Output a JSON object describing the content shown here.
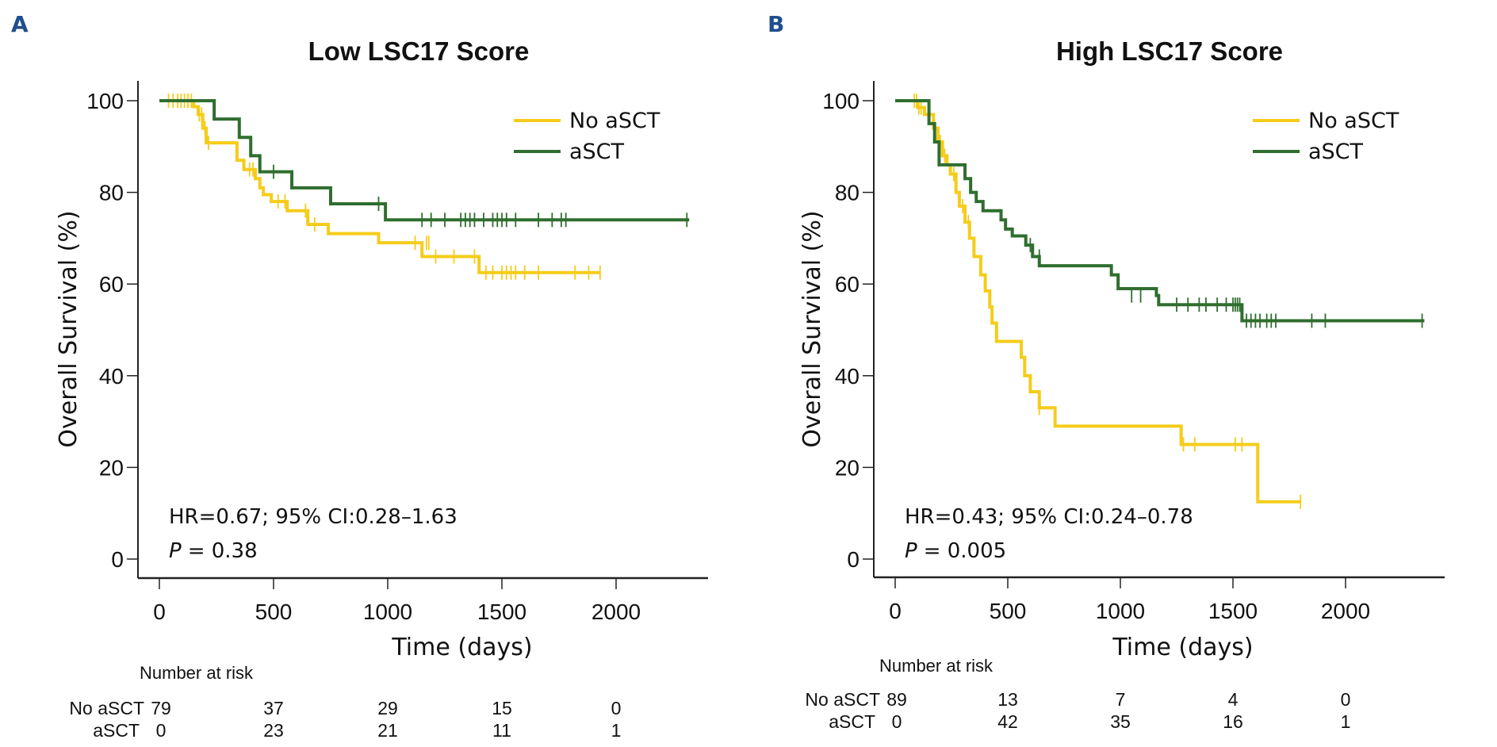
{
  "figure": {
    "colors": {
      "no_asct": "#f5cc1a",
      "asct": "#2f6e2f",
      "panel_letter": "#1f4e8c",
      "axis": "#222222"
    }
  },
  "chart_data": [
    {
      "panel": "A",
      "type": "line",
      "subtype": "kaplan-meier-step",
      "title": "Low LSC17 Score",
      "xlabel": "Time (days)",
      "ylabel": "Overall Survival (%)",
      "xlim": [
        0,
        2400
      ],
      "ylim": [
        0,
        100
      ],
      "xticks": [
        "0",
        "500",
        "1000",
        "1500",
        "2000"
      ],
      "yticks": [
        "0",
        "20",
        "40",
        "60",
        "80",
        "100"
      ],
      "grid": false,
      "legend": {
        "placement": "top-right",
        "entries": [
          "No aSCT",
          "aSCT"
        ]
      },
      "annotation": {
        "hr": "HR=0.67; 95% CI:0.28–1.63",
        "p_label": "P",
        "p_value": "= 0.38"
      },
      "series": [
        {
          "name": "No aSCT",
          "color_key": "no_asct",
          "steps": [
            [
              0,
              100
            ],
            [
              150,
              98.7
            ],
            [
              170,
              97
            ],
            [
              190,
              94
            ],
            [
              205,
              90.8
            ],
            [
              340,
              87
            ],
            [
              370,
              85
            ],
            [
              420,
              83
            ],
            [
              440,
              81
            ],
            [
              455,
              79.5
            ],
            [
              490,
              78
            ],
            [
              560,
              76
            ],
            [
              650,
              73
            ],
            [
              740,
              71
            ],
            [
              960,
              69
            ],
            [
              1150,
              66
            ],
            [
              1400,
              62.5
            ],
            [
              1930,
              62.5
            ]
          ],
          "censored": [
            [
              40,
              100
            ],
            [
              60,
              100
            ],
            [
              80,
              100
            ],
            [
              95,
              100
            ],
            [
              110,
              100
            ],
            [
              125,
              100
            ],
            [
              140,
              100
            ],
            [
              175,
              97
            ],
            [
              185,
              97
            ],
            [
              200,
              94
            ],
            [
              215,
              90.8
            ],
            [
              395,
              85
            ],
            [
              410,
              85
            ],
            [
              520,
              78
            ],
            [
              550,
              78
            ],
            [
              640,
              76
            ],
            [
              680,
              73
            ],
            [
              1120,
              69
            ],
            [
              1170,
              69
            ],
            [
              1180,
              69
            ],
            [
              1210,
              66
            ],
            [
              1290,
              66
            ],
            [
              1380,
              66
            ],
            [
              1430,
              62.5
            ],
            [
              1460,
              62.5
            ],
            [
              1500,
              62.5
            ],
            [
              1520,
              62.5
            ],
            [
              1540,
              62.5
            ],
            [
              1560,
              62.5
            ],
            [
              1600,
              62.5
            ],
            [
              1660,
              62.5
            ],
            [
              1820,
              62.5
            ],
            [
              1880,
              62.5
            ],
            [
              1930,
              62.5
            ]
          ]
        },
        {
          "name": "aSCT",
          "color_key": "asct",
          "steps": [
            [
              0,
              100
            ],
            [
              240,
              96
            ],
            [
              350,
              92
            ],
            [
              400,
              88
            ],
            [
              440,
              84.5
            ],
            [
              580,
              81
            ],
            [
              750,
              77.5
            ],
            [
              990,
              74
            ],
            [
              2320,
              74
            ]
          ],
          "censored": [
            [
              500,
              84.5
            ],
            [
              960,
              77.5
            ],
            [
              1150,
              74
            ],
            [
              1190,
              74
            ],
            [
              1250,
              74
            ],
            [
              1320,
              74
            ],
            [
              1340,
              74
            ],
            [
              1360,
              74
            ],
            [
              1380,
              74
            ],
            [
              1420,
              74
            ],
            [
              1460,
              74
            ],
            [
              1480,
              74
            ],
            [
              1500,
              74
            ],
            [
              1520,
              74
            ],
            [
              1560,
              74
            ],
            [
              1660,
              74
            ],
            [
              1720,
              74
            ],
            [
              1760,
              74
            ],
            [
              1780,
              74
            ],
            [
              2310,
              74
            ]
          ]
        }
      ],
      "risk_table": {
        "heading": "Number at risk",
        "times": [
          0,
          500,
          1000,
          1500,
          2000
        ],
        "rows": [
          {
            "label": "No aSCT",
            "values": [
              "79",
              "37",
              "29",
              "15",
              "0"
            ]
          },
          {
            "label": "aSCT",
            "values": [
              "0",
              "23",
              "21",
              "11",
              "1"
            ]
          }
        ]
      }
    },
    {
      "panel": "B",
      "type": "line",
      "subtype": "kaplan-meier-step",
      "title": "High LSC17 Score",
      "xlabel": "Time (days)",
      "ylabel": "Overall Survival (%)",
      "xlim": [
        0,
        2400
      ],
      "ylim": [
        0,
        100
      ],
      "xticks": [
        "0",
        "500",
        "1000",
        "1500",
        "2000"
      ],
      "yticks": [
        "0",
        "20",
        "40",
        "60",
        "80",
        "100"
      ],
      "grid": false,
      "legend": {
        "placement": "top-right",
        "entries": [
          "No aSCT",
          "aSCT"
        ]
      },
      "annotation": {
        "hr": "HR=0.43; 95% CI:0.24–0.78",
        "p_label": "P",
        "p_value": "= 0.005"
      },
      "series": [
        {
          "name": "No aSCT",
          "color_key": "no_asct",
          "steps": [
            [
              0,
              100
            ],
            [
              100,
              98.5
            ],
            [
              130,
              97
            ],
            [
              170,
              94
            ],
            [
              190,
              91
            ],
            [
              210,
              88
            ],
            [
              230,
              86
            ],
            [
              245,
              84
            ],
            [
              270,
              80
            ],
            [
              285,
              77
            ],
            [
              310,
              73.5
            ],
            [
              330,
              70
            ],
            [
              350,
              66
            ],
            [
              380,
              62
            ],
            [
              400,
              58.5
            ],
            [
              420,
              55
            ],
            [
              430,
              51.5
            ],
            [
              450,
              47.5
            ],
            [
              560,
              44
            ],
            [
              575,
              40
            ],
            [
              600,
              36.5
            ],
            [
              640,
              33
            ],
            [
              710,
              29
            ],
            [
              1270,
              25
            ],
            [
              1610,
              12.5
            ],
            [
              1800,
              12.5
            ]
          ],
          "censored": [
            [
              85,
              100
            ],
            [
              95,
              100
            ],
            [
              105,
              98.5
            ],
            [
              115,
              98.5
            ],
            [
              150,
              97
            ],
            [
              200,
              91
            ],
            [
              220,
              88
            ],
            [
              260,
              84
            ],
            [
              300,
              77
            ],
            [
              325,
              73.5
            ],
            [
              640,
              33
            ],
            [
              1280,
              25
            ],
            [
              1330,
              25
            ],
            [
              1510,
              25
            ],
            [
              1540,
              25
            ],
            [
              1800,
              12.5
            ]
          ]
        },
        {
          "name": "aSCT",
          "color_key": "asct",
          "steps": [
            [
              0,
              100
            ],
            [
              150,
              95
            ],
            [
              175,
              91
            ],
            [
              195,
              86
            ],
            [
              310,
              83
            ],
            [
              335,
              80
            ],
            [
              360,
              78
            ],
            [
              390,
              76
            ],
            [
              470,
              74
            ],
            [
              490,
              72
            ],
            [
              520,
              70.5
            ],
            [
              580,
              68.5
            ],
            [
              610,
              66
            ],
            [
              640,
              64
            ],
            [
              960,
              62
            ],
            [
              990,
              59
            ],
            [
              1160,
              57.5
            ],
            [
              1170,
              55.5
            ],
            [
              1540,
              52
            ],
            [
              2350,
              52
            ]
          ],
          "censored": [
            [
              600,
              68.5
            ],
            [
              640,
              66
            ],
            [
              1050,
              57.5
            ],
            [
              1090,
              57.5
            ],
            [
              1250,
              55.5
            ],
            [
              1300,
              55.5
            ],
            [
              1350,
              55.5
            ],
            [
              1380,
              55.5
            ],
            [
              1430,
              55.5
            ],
            [
              1470,
              55.5
            ],
            [
              1500,
              55.5
            ],
            [
              1510,
              55.5
            ],
            [
              1520,
              55.5
            ],
            [
              1530,
              55.5
            ],
            [
              1560,
              52
            ],
            [
              1580,
              52
            ],
            [
              1600,
              52
            ],
            [
              1620,
              52
            ],
            [
              1650,
              52
            ],
            [
              1670,
              52
            ],
            [
              1690,
              52
            ],
            [
              1850,
              52
            ],
            [
              1910,
              52
            ],
            [
              2340,
              52
            ]
          ]
        }
      ],
      "risk_table": {
        "heading": "Number at risk",
        "times": [
          0,
          500,
          1000,
          1500,
          2000
        ],
        "rows": [
          {
            "label": "No aSCT",
            "values": [
              "89",
              "13",
              "7",
              "4",
              "0"
            ]
          },
          {
            "label": "aSCT",
            "values": [
              "0",
              "42",
              "35",
              "16",
              "1"
            ]
          }
        ]
      }
    }
  ]
}
